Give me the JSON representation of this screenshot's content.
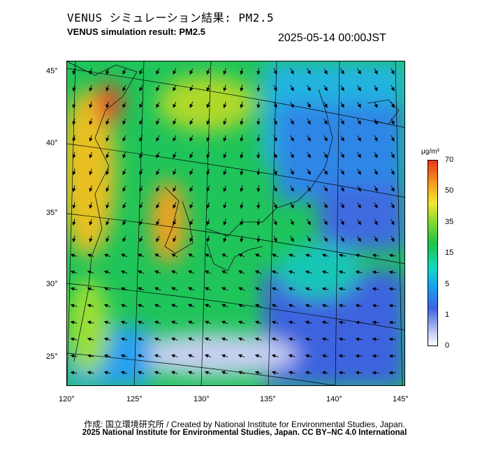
{
  "header": {
    "title_jp": "VENUS シミュレーション結果: PM2.5",
    "title_en": "VENUS simulation result: PM2.5",
    "timestamp": "2025-05-14 00:00JST"
  },
  "map": {
    "lat_labels": [
      "45°",
      "40°",
      "35°",
      "30°",
      "25°"
    ],
    "lon_labels": [
      "120°",
      "125°",
      "130°",
      "135°",
      "140°",
      "145°"
    ]
  },
  "colorbar": {
    "unit": "μg/m³",
    "ticks": [
      "70",
      "50",
      "35",
      "15",
      "5",
      "1",
      "0"
    ]
  },
  "footer": {
    "credit_1": "作成: 国立環境研究所 / Created by National Institute for Environmental Studies, Japan.",
    "credit_2": "2025 National Institute for Environmental Studies, Japan. CC BY–NC 4.0 International"
  }
}
